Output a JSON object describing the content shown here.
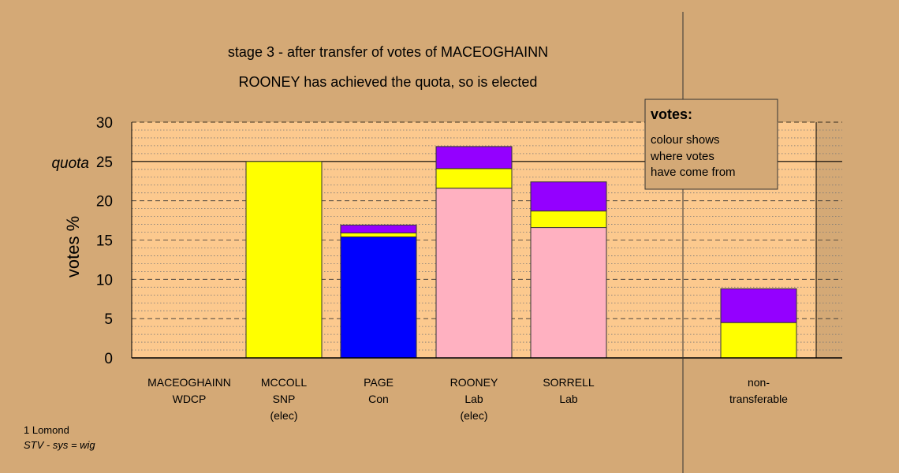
{
  "title": "stage 3 - after transfer of votes of MACEOGHAINN",
  "subtitle": "ROONEY has achieved the quota, so is elected",
  "footer": {
    "line1": "1 Lomond",
    "line2": "STV - sys = wig"
  },
  "legend": {
    "heading": "votes:",
    "lines": [
      "colour shows",
      "where votes",
      "have come from"
    ]
  },
  "colors": {
    "background": "#d4a976",
    "plot_area": "#fcc98e",
    "pink": "#ffb1c1",
    "yellow": "#ffff00",
    "blue": "#0000ff",
    "purple": "#9400ff"
  },
  "chart_data": {
    "type": "bar",
    "stacked": true,
    "ylabel": "votes %",
    "ylim": [
      0,
      30
    ],
    "yticks": [
      "0",
      "5",
      "10",
      "15",
      "20",
      "25",
      "30"
    ],
    "quota": {
      "label": "quota",
      "value": 25
    },
    "categories": [
      {
        "name": "MACEOGHAINN",
        "party": "WDCP",
        "note": ""
      },
      {
        "name": "MCCOLL",
        "party": "SNP",
        "note": "(elec)"
      },
      {
        "name": "PAGE",
        "party": "Con",
        "note": ""
      },
      {
        "name": "ROONEY",
        "party": "Lab",
        "note": "(elec)"
      },
      {
        "name": "SORRELL",
        "party": "Lab",
        "note": ""
      },
      {
        "name": "non-",
        "party": "transferable",
        "note": ""
      }
    ],
    "bars": [
      {
        "category": "MACEOGHAINN",
        "segments": []
      },
      {
        "category": "MCCOLL",
        "segments": [
          {
            "color": "yellow",
            "value": 25.0
          }
        ]
      },
      {
        "category": "PAGE",
        "segments": [
          {
            "color": "blue",
            "value": 15.4
          },
          {
            "color": "yellow",
            "value": 0.5
          },
          {
            "color": "purple",
            "value": 1.0
          }
        ]
      },
      {
        "category": "ROONEY",
        "segments": [
          {
            "color": "pink",
            "value": 21.6
          },
          {
            "color": "yellow",
            "value": 2.5
          },
          {
            "color": "purple",
            "value": 2.8
          }
        ]
      },
      {
        "category": "SORRELL",
        "segments": [
          {
            "color": "pink",
            "value": 16.6
          },
          {
            "color": "yellow",
            "value": 2.1
          },
          {
            "color": "purple",
            "value": 3.7
          }
        ]
      },
      {
        "category": "non-transferable",
        "segments": [
          {
            "color": "yellow",
            "value": 4.5
          },
          {
            "color": "purple",
            "value": 4.3
          }
        ]
      }
    ],
    "grid": true
  }
}
